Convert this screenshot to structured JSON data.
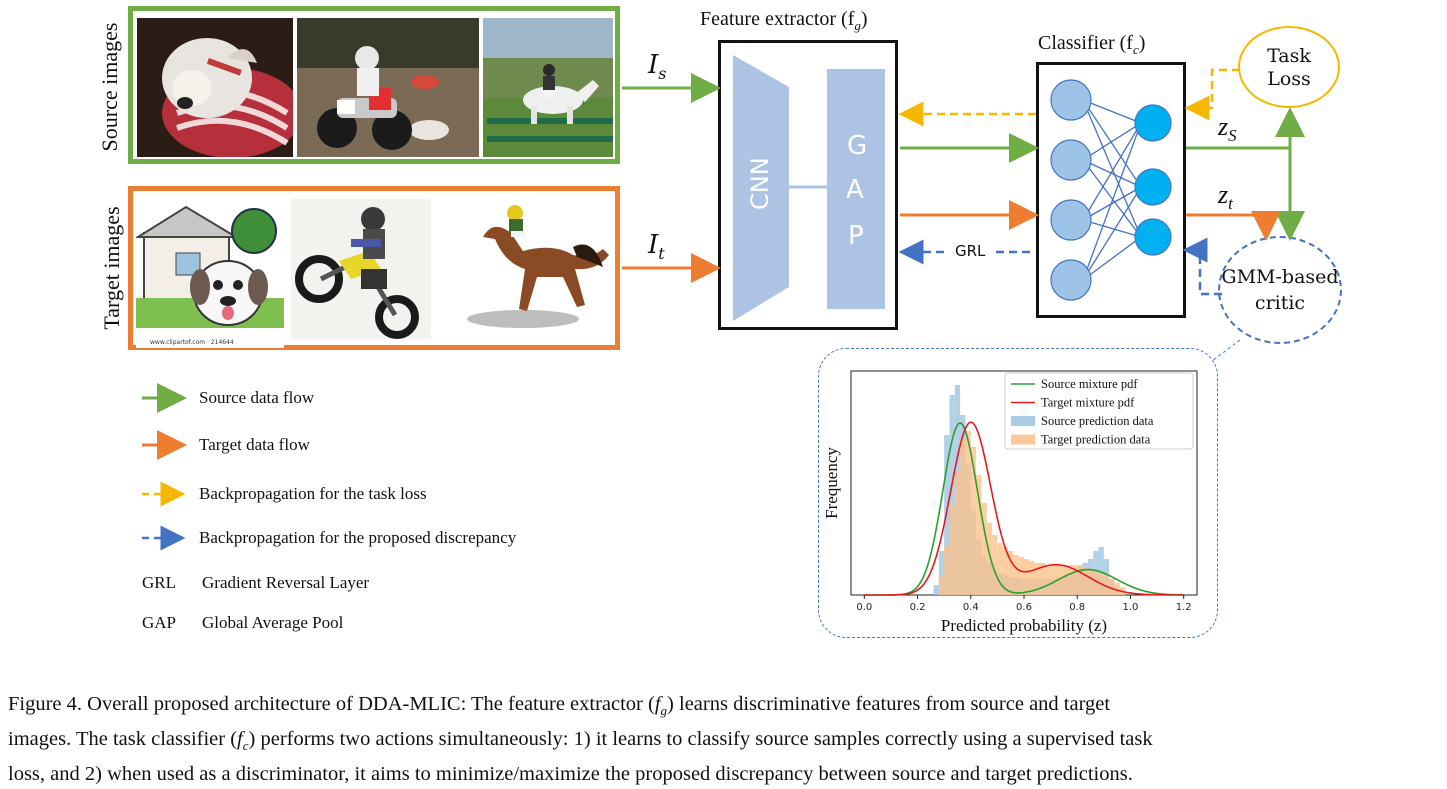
{
  "labels": {
    "source_images": "Source images",
    "target_images": "Target images",
    "feature_extractor": "Feature extractor (f",
    "feature_extractor_sub": "g",
    "classifier": "Classifier (f",
    "classifier_sub": "c",
    "cnn": "CNN",
    "gap_g": "G",
    "gap_a": "A",
    "gap_p": "P",
    "task_loss_1": "Task",
    "task_loss_2": "Loss",
    "critic_1": "GMM-based",
    "critic_2": "critic",
    "grl": "GRL",
    "is_main": "I",
    "is_sub": "s",
    "it_main": "I",
    "it_sub": "t",
    "zs_main": "z",
    "zs_sub": "S",
    "zt_main": "z",
    "zt_sub": "t",
    "watermark": "www.clipartof.com · 214644"
  },
  "legend": [
    {
      "key": "source_flow",
      "text": "Source data flow"
    },
    {
      "key": "target_flow",
      "text": "Target data flow"
    },
    {
      "key": "bp_task",
      "text": "Backpropagation for the task loss"
    },
    {
      "key": "bp_disc",
      "text": "Backpropagation for the proposed discrepancy"
    },
    {
      "key": "grl",
      "abbr": "GRL",
      "text": "Gradient Reversal Layer"
    },
    {
      "key": "gap",
      "abbr": "GAP",
      "text": "Global Average Pool"
    }
  ],
  "colors": {
    "source": "#70ad47",
    "target": "#ed7d31",
    "task_bp": "#f5b800",
    "disc_bp": "#4472c4",
    "block": "#adc3e3",
    "node": "#9dc3e6",
    "node_out": "#00b0f0",
    "hist_src": "#9cc3e0",
    "hist_tgt": "#fdc088"
  },
  "caption": {
    "line1_a": "Figure 4.  Overall proposed architecture of DDA-MLIC: The feature extractor (",
    "line1_f": "f",
    "line1_sub": "g",
    "line1_b": ") learns discriminative features from source and target",
    "line2_a": "images. The task classifier (",
    "line2_f": "f",
    "line2_sub": "c",
    "line2_b": ") performs two actions simultaneously: 1) it learns to classify source samples correctly using a supervised task",
    "line3": "loss, and 2) when used as a discriminator, it aims to minimize/maximize the proposed discrepancy between source and target predictions."
  },
  "chart_data": {
    "type": "area",
    "xlabel": "Predicted probability (z)",
    "ylabel": "Frequency",
    "xlim": [
      -0.05,
      1.25
    ],
    "xticks": [
      "0.0",
      "0.2",
      "0.4",
      "0.6",
      "0.8",
      "1.0",
      "1.2"
    ],
    "xtick_values": [
      0.0,
      0.2,
      0.4,
      0.6,
      0.8,
      1.0,
      1.2
    ],
    "legend_position": "top-right",
    "series": [
      {
        "name": "Source mixture pdf",
        "kind": "line",
        "color": "#2ca02c",
        "components": [
          {
            "w": 0.8,
            "mu": 0.36,
            "sd": 0.065
          },
          {
            "w": 0.2,
            "mu": 0.84,
            "sd": 0.11
          }
        ]
      },
      {
        "name": "Target mixture pdf",
        "kind": "line",
        "color": "#e41a1c",
        "components": [
          {
            "w": 0.78,
            "mu": 0.4,
            "sd": 0.075
          },
          {
            "w": 0.22,
            "mu": 0.72,
            "sd": 0.12
          }
        ]
      },
      {
        "name": "Source prediction data",
        "kind": "hist",
        "color": "#9cc3e0",
        "bin_width": 0.02,
        "bins_x": [
          0.26,
          0.28,
          0.3,
          0.32,
          0.34,
          0.36,
          0.38,
          0.4,
          0.42,
          0.44,
          0.46,
          0.48,
          0.5,
          0.52,
          0.54,
          0.56,
          0.58,
          0.6,
          0.62,
          0.64,
          0.66,
          0.68,
          0.7,
          0.72,
          0.74,
          0.76,
          0.78,
          0.8,
          0.82,
          0.84,
          0.86,
          0.88,
          0.9,
          0.92,
          0.94
        ],
        "bins_h": [
          0.05,
          0.22,
          0.8,
          1.0,
          1.05,
          0.9,
          0.65,
          0.42,
          0.28,
          0.2,
          0.16,
          0.13,
          0.11,
          0.1,
          0.09,
          0.09,
          0.08,
          0.08,
          0.08,
          0.08,
          0.08,
          0.08,
          0.08,
          0.09,
          0.1,
          0.11,
          0.12,
          0.14,
          0.16,
          0.18,
          0.22,
          0.24,
          0.18,
          0.08,
          0.03
        ]
      },
      {
        "name": "Target prediction data",
        "kind": "hist",
        "color": "#fdc088",
        "bin_width": 0.02,
        "bins_x": [
          0.28,
          0.3,
          0.32,
          0.34,
          0.36,
          0.38,
          0.4,
          0.42,
          0.44,
          0.46,
          0.48,
          0.5,
          0.52,
          0.54,
          0.56,
          0.58,
          0.6,
          0.62,
          0.64,
          0.66,
          0.68,
          0.7,
          0.72,
          0.74,
          0.76,
          0.78,
          0.8,
          0.82,
          0.84,
          0.86,
          0.88,
          0.9,
          0.92,
          0.94,
          0.96
        ],
        "bins_h": [
          0.1,
          0.25,
          0.45,
          0.62,
          0.78,
          0.82,
          0.74,
          0.6,
          0.46,
          0.36,
          0.3,
          0.26,
          0.24,
          0.22,
          0.2,
          0.19,
          0.18,
          0.17,
          0.16,
          0.16,
          0.15,
          0.15,
          0.15,
          0.15,
          0.15,
          0.15,
          0.15,
          0.14,
          0.13,
          0.12,
          0.11,
          0.1,
          0.08,
          0.06,
          0.04
        ]
      }
    ]
  }
}
